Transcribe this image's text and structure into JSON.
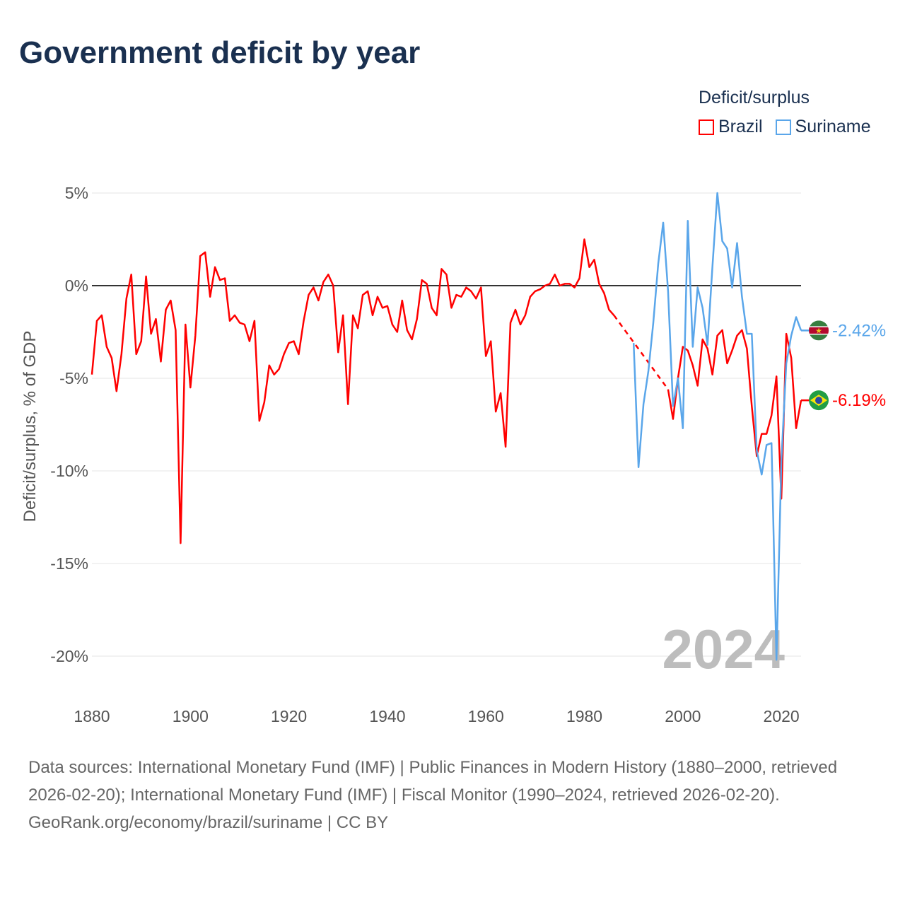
{
  "title": "Government deficit by year",
  "legend": {
    "title": "Deficit/surplus",
    "items": [
      {
        "name": "Brazil",
        "color": "#ff0000"
      },
      {
        "name": "Suriname",
        "color": "#5aa6ea"
      }
    ]
  },
  "footer": {
    "sources": "Data sources: International Monetary Fund (IMF) | Public Finances in Modern History (1880–2000, retrieved 2026-02-20); International Monetary Fund (IMF) | Fiscal Monitor (1990–2024, retrieved 2026-02-20).",
    "credit": "GeoRank.org/economy/brazil/suriname | CC BY"
  },
  "chart_data": {
    "type": "line",
    "title": "Government deficit by year",
    "xlabel": "",
    "ylabel": "Deficit/surplus, % of GDP",
    "xlim": [
      1880,
      2024
    ],
    "ylim": [
      -20,
      5
    ],
    "x_ticks": [
      1880,
      1900,
      1920,
      1940,
      1960,
      1980,
      2000,
      2020
    ],
    "x_tick_labels": [
      "1880",
      "1900",
      "1920",
      "1940",
      "1960",
      "1980",
      "2000",
      "2020"
    ],
    "y_ticks": [
      5,
      0,
      -5,
      -10,
      -15,
      -20
    ],
    "y_tick_labels": [
      "5%",
      "0%",
      "-5%",
      "-10%",
      "-15%",
      "-20%"
    ],
    "current_year": "2024",
    "grid": true,
    "legend_position": "top-right",
    "series": [
      {
        "name": "Brazil",
        "color": "#ff0000",
        "start_year": 1880,
        "end_label": "-6.19%",
        "values": [
          -4.8,
          -1.9,
          -1.6,
          -3.3,
          -3.9,
          -5.7,
          -3.7,
          -0.7,
          0.6,
          -3.7,
          -3.0,
          0.5,
          -2.6,
          -1.8,
          -4.1,
          -1.3,
          -0.8,
          -2.4,
          -13.9,
          -2.1,
          -5.5,
          -2.7,
          1.6,
          1.8,
          -0.6,
          1.0,
          0.3,
          0.4,
          -1.9,
          -1.6,
          -2.0,
          -2.1,
          -3.0,
          -1.9,
          -7.3,
          -6.3,
          -4.3,
          -4.8,
          -4.5,
          -3.7,
          -3.1,
          -3.0,
          -3.7,
          -1.9,
          -0.5,
          -0.1,
          -0.8,
          0.2,
          0.6,
          0.0,
          -3.6,
          -1.6,
          -6.4,
          -1.6,
          -2.3,
          -0.5,
          -0.3,
          -1.6,
          -0.6,
          -1.2,
          -1.1,
          -2.1,
          -2.5,
          -0.8,
          -2.4,
          -2.9,
          -1.8,
          0.3,
          0.1,
          -1.2,
          -1.6,
          0.9,
          0.6,
          -1.2,
          -0.5,
          -0.6,
          -0.1,
          -0.3,
          -0.7,
          -0.1,
          -3.8,
          -3.0,
          -6.8,
          -5.8,
          -8.7,
          -2.0,
          -1.3,
          -2.1,
          -1.6,
          -0.6,
          -0.3,
          -0.2,
          0.0,
          0.1,
          0.6,
          0.0,
          0.1,
          0.1,
          -0.1,
          0.4,
          2.5,
          1.0,
          1.4,
          0.1,
          -0.4,
          -1.3,
          -1.6,
          null,
          null,
          null,
          null,
          null,
          null,
          null,
          null,
          null,
          null,
          -5.6,
          -7.2,
          -5.0,
          -3.3,
          -3.5,
          -4.3,
          -5.4,
          -2.9,
          -3.4,
          -4.8,
          -2.7,
          -2.4,
          -4.2,
          -3.5,
          -2.7,
          -2.4,
          -3.4,
          -6.5,
          -9.2,
          -8.0,
          -8.0,
          -7.0,
          -4.9,
          -11.5,
          -2.6,
          -3.9,
          -7.7,
          -6.19
        ]
      },
      {
        "name": "Suriname",
        "color": "#5aa6ea",
        "start_year": 1990,
        "end_label": "-2.42%",
        "values": [
          -3.1,
          -9.8,
          -6.4,
          -4.6,
          -2.0,
          1.2,
          3.4,
          -0.3,
          -6.5,
          -5.0,
          -7.7,
          3.5,
          -3.3,
          -0.1,
          -1.2,
          -3.2,
          1.0,
          5.0,
          2.4,
          2.0,
          -0.1,
          2.3,
          -0.6,
          -2.6,
          -2.6,
          -8.9,
          -10.2,
          -8.6,
          -8.5,
          -20.2,
          -9.5,
          -4.2,
          -2.7,
          -1.7,
          -2.42
        ]
      }
    ]
  }
}
